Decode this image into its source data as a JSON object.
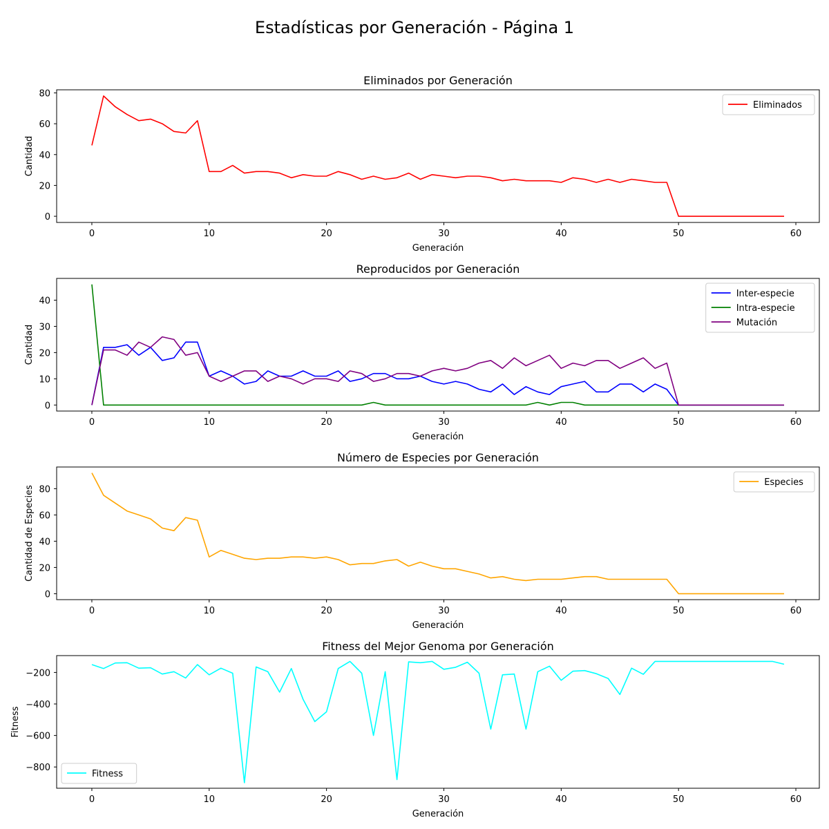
{
  "figure": {
    "suptitle": "Estadísticas por Generación - Página 1"
  },
  "chart_data": [
    {
      "type": "line",
      "title": "Eliminados por Generación",
      "xlabel": "Generación",
      "ylabel": "Cantidad",
      "xlim": [
        -3,
        62
      ],
      "ylim": [
        -4,
        82
      ],
      "xticks": [
        0,
        10,
        20,
        30,
        40,
        50,
        60
      ],
      "yticks": [
        0,
        20,
        40,
        60,
        80
      ],
      "legend": "top-right",
      "x": [
        0,
        1,
        2,
        3,
        4,
        5,
        6,
        7,
        8,
        9,
        10,
        11,
        12,
        13,
        14,
        15,
        16,
        17,
        18,
        19,
        20,
        21,
        22,
        23,
        24,
        25,
        26,
        27,
        28,
        29,
        30,
        31,
        32,
        33,
        34,
        35,
        36,
        37,
        38,
        39,
        40,
        41,
        42,
        43,
        44,
        45,
        46,
        47,
        48,
        49,
        50,
        51,
        52,
        53,
        54,
        55,
        56,
        57,
        58,
        59
      ],
      "series": [
        {
          "name": "Eliminados",
          "color": "#ff0000",
          "values": [
            46,
            78,
            71,
            66,
            62,
            63,
            60,
            55,
            54,
            62,
            29,
            29,
            33,
            28,
            29,
            29,
            28,
            25,
            27,
            26,
            26,
            29,
            27,
            24,
            26,
            24,
            25,
            28,
            24,
            27,
            26,
            25,
            26,
            26,
            25,
            23,
            24,
            23,
            23,
            23,
            22,
            25,
            24,
            22,
            24,
            22,
            24,
            23,
            22,
            22,
            0,
            0,
            0,
            0,
            0,
            0,
            0,
            0,
            0,
            0
          ]
        }
      ]
    },
    {
      "type": "line",
      "title": "Reproducidos por Generación",
      "xlabel": "Generación",
      "ylabel": "Cantidad",
      "xlim": [
        -3,
        62
      ],
      "ylim": [
        -2.3,
        48.3
      ],
      "xticks": [
        0,
        10,
        20,
        30,
        40,
        50,
        60
      ],
      "yticks": [
        0,
        10,
        20,
        30,
        40
      ],
      "legend": "top-right",
      "x": [
        0,
        1,
        2,
        3,
        4,
        5,
        6,
        7,
        8,
        9,
        10,
        11,
        12,
        13,
        14,
        15,
        16,
        17,
        18,
        19,
        20,
        21,
        22,
        23,
        24,
        25,
        26,
        27,
        28,
        29,
        30,
        31,
        32,
        33,
        34,
        35,
        36,
        37,
        38,
        39,
        40,
        41,
        42,
        43,
        44,
        45,
        46,
        47,
        48,
        49,
        50,
        51,
        52,
        53,
        54,
        55,
        56,
        57,
        58,
        59
      ],
      "series": [
        {
          "name": "Inter-especie",
          "color": "#0000ff",
          "values": [
            0,
            22,
            22,
            23,
            19,
            22,
            17,
            18,
            24,
            24,
            11,
            13,
            11,
            8,
            9,
            13,
            11,
            11,
            13,
            11,
            11,
            13,
            9,
            10,
            12,
            12,
            10,
            10,
            11,
            9,
            8,
            9,
            8,
            6,
            5,
            8,
            4,
            7,
            5,
            4,
            7,
            8,
            9,
            5,
            5,
            8,
            8,
            5,
            8,
            6,
            0,
            0,
            0,
            0,
            0,
            0,
            0,
            0,
            0,
            0
          ]
        },
        {
          "name": "Intra-especie",
          "color": "#008000",
          "values": [
            46,
            0,
            0,
            0,
            0,
            0,
            0,
            0,
            0,
            0,
            0,
            0,
            0,
            0,
            0,
            0,
            0,
            0,
            0,
            0,
            0,
            0,
            0,
            0,
            1,
            0,
            0,
            0,
            0,
            0,
            0,
            0,
            0,
            0,
            0,
            0,
            0,
            0,
            1,
            0,
            1,
            1,
            0,
            0,
            0,
            0,
            0,
            0,
            0,
            0,
            0,
            0,
            0,
            0,
            0,
            0,
            0,
            0,
            0,
            0
          ]
        },
        {
          "name": "Mutación",
          "color": "#800080",
          "values": [
            0,
            21,
            21,
            19,
            24,
            22,
            26,
            25,
            19,
            20,
            11,
            9,
            11,
            13,
            13,
            9,
            11,
            10,
            8,
            10,
            10,
            9,
            13,
            12,
            9,
            10,
            12,
            12,
            11,
            13,
            14,
            13,
            14,
            16,
            17,
            14,
            18,
            15,
            17,
            19,
            14,
            16,
            15,
            17,
            17,
            14,
            16,
            18,
            14,
            16,
            0,
            0,
            0,
            0,
            0,
            0,
            0,
            0,
            0,
            0
          ]
        }
      ]
    },
    {
      "type": "line",
      "title": "Número de Especies por Generación",
      "xlabel": "Generación",
      "ylabel": "Cantidad de Especies",
      "xlim": [
        -3,
        62
      ],
      "ylim": [
        -4.5,
        96.5
      ],
      "xticks": [
        0,
        10,
        20,
        30,
        40,
        50,
        60
      ],
      "yticks": [
        0,
        20,
        40,
        60,
        80
      ],
      "legend": "top-right",
      "x": [
        0,
        1,
        2,
        3,
        4,
        5,
        6,
        7,
        8,
        9,
        10,
        11,
        12,
        13,
        14,
        15,
        16,
        17,
        18,
        19,
        20,
        21,
        22,
        23,
        24,
        25,
        26,
        27,
        28,
        29,
        30,
        31,
        32,
        33,
        34,
        35,
        36,
        37,
        38,
        39,
        40,
        41,
        42,
        43,
        44,
        45,
        46,
        47,
        48,
        49,
        50,
        51,
        52,
        53,
        54,
        55,
        56,
        57,
        58,
        59
      ],
      "series": [
        {
          "name": "Especies",
          "color": "#ffa500",
          "values": [
            92,
            75,
            69,
            63,
            60,
            57,
            50,
            48,
            58,
            56,
            28,
            33,
            30,
            27,
            26,
            27,
            27,
            28,
            28,
            27,
            28,
            26,
            22,
            23,
            23,
            25,
            26,
            21,
            24,
            21,
            19,
            19,
            17,
            15,
            12,
            13,
            11,
            10,
            11,
            11,
            11,
            12,
            13,
            13,
            11,
            11,
            11,
            11,
            11,
            11,
            0,
            0,
            0,
            0,
            0,
            0,
            0,
            0,
            0,
            0
          ]
        }
      ]
    },
    {
      "type": "line",
      "title": "Fitness del Mejor Genoma por Generación",
      "xlabel": "Generación",
      "ylabel": "Fitness",
      "xlim": [
        -3,
        62
      ],
      "ylim": [
        -935,
        -93
      ],
      "xticks": [
        0,
        10,
        20,
        30,
        40,
        50,
        60
      ],
      "yticks": [
        -800,
        -600,
        -400,
        -200
      ],
      "legend": "lower-left",
      "x": [
        0,
        1,
        2,
        3,
        4,
        5,
        6,
        7,
        8,
        9,
        10,
        11,
        12,
        13,
        14,
        15,
        16,
        17,
        18,
        19,
        20,
        21,
        22,
        23,
        24,
        25,
        26,
        27,
        28,
        29,
        30,
        31,
        32,
        33,
        34,
        35,
        36,
        37,
        38,
        39,
        40,
        41,
        42,
        43,
        44,
        45,
        46,
        47,
        48,
        49,
        50,
        51,
        52,
        53,
        54,
        55,
        56,
        57,
        58,
        59
      ],
      "series": [
        {
          "name": "Fitness",
          "color": "#00ffff",
          "values": [
            -150,
            -175,
            -140,
            -138,
            -173,
            -170,
            -210,
            -195,
            -235,
            -150,
            -215,
            -173,
            -205,
            -900,
            -165,
            -195,
            -325,
            -175,
            -370,
            -512,
            -450,
            -175,
            -130,
            -205,
            -600,
            -195,
            -880,
            -133,
            -138,
            -130,
            -180,
            -167,
            -135,
            -205,
            -560,
            -215,
            -210,
            -560,
            -195,
            -160,
            -250,
            -192,
            -188,
            -208,
            -238,
            -340,
            -173,
            -212,
            -130,
            -130,
            -130,
            -130,
            -130,
            -130,
            -130,
            -130,
            -130,
            -130,
            -130,
            -148
          ]
        }
      ]
    }
  ]
}
